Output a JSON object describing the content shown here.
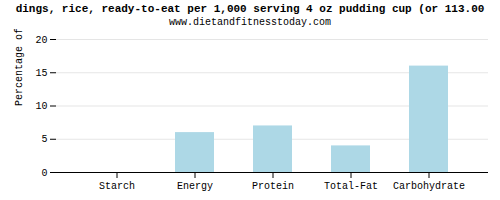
{
  "chart_data": {
    "type": "bar",
    "title": "dings, rice, ready-to-eat per 1,000 serving 4 oz pudding cup (or 113.00",
    "subtitle": "www.dietandfitnesstoday.com",
    "categories": [
      "Starch",
      "Energy",
      "Protein",
      "Total-Fat",
      "Carbohydrate"
    ],
    "values": [
      0,
      6,
      7,
      4,
      16
    ],
    "color": "#add8e6",
    "ylabel": "Percentage of RDH (%)",
    "ylim": [
      0,
      20
    ],
    "yticks": [
      0,
      5,
      10,
      15,
      20
    ],
    "grid": true
  }
}
